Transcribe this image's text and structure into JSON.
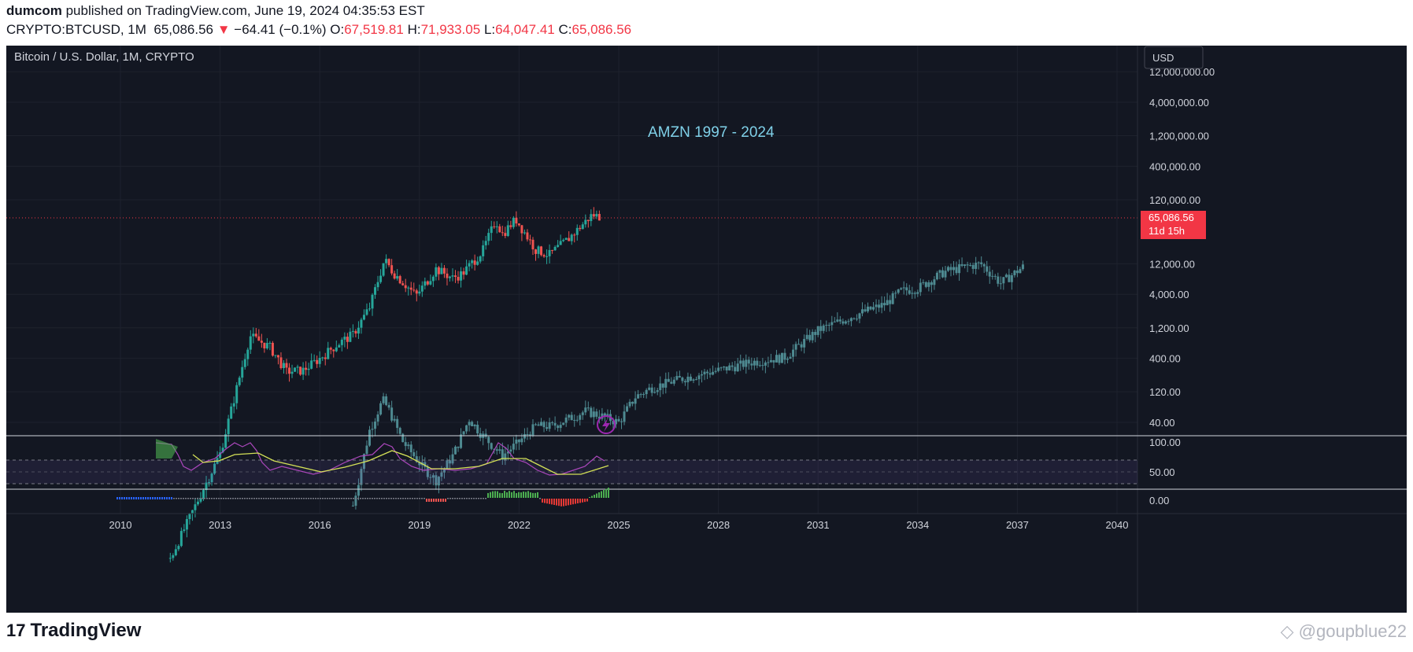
{
  "header": {
    "publisher": "dumcom",
    "published_text": "published on TradingView.com, June 19, 2024 04:35:53 EST",
    "symbol": "CRYPTO:BTCUSD, 1M",
    "last": "65,086.56",
    "change_arrow": "▼",
    "change": "−64.41 (−0.1%)",
    "o_label": "O:",
    "o": "67,519.81",
    "h_label": "H:",
    "h": "71,933.05",
    "l_label": "L:",
    "l": "64,047.41",
    "c_label": "C:",
    "c": "65,086.56"
  },
  "chart": {
    "legend": "Bitcoin / U.S. Dollar, 1M, CRYPTO",
    "currency_button": "USD",
    "annotation": "AMZN 1997 - 2024",
    "price_badge_value": "65,086.56",
    "price_badge_time": "11d 15h",
    "colors": {
      "up": "#26a69a",
      "down": "#ef5350",
      "ghost": "#4e8a91",
      "annotation": "#7fd0e8",
      "badge": "#f23645",
      "rsi": "#9c27b0",
      "rsi_ma": "#d4e157"
    }
  },
  "chart_data": {
    "type": "candlestick",
    "scale": "log",
    "y_ticks": [
      "12,000,000.00",
      "4,000,000.00",
      "1,200,000.00",
      "400,000.00",
      "120,000.00",
      "12,000.00",
      "4,000.00",
      "1,200.00",
      "400.00",
      "120.00",
      "40.00"
    ],
    "x_ticks": [
      "2010",
      "2013",
      "2016",
      "2019",
      "2022",
      "2025",
      "2028",
      "2031",
      "2034",
      "2037",
      "2040"
    ],
    "series": [
      {
        "name": "Bitcoin / U.S. Dollar, 1M, CRYPTO",
        "close": [
          [
            2011.5,
            0.3
          ],
          [
            2013.0,
            13
          ],
          [
            2013.9,
            900
          ],
          [
            2014.5,
            600
          ],
          [
            2015.0,
            250
          ],
          [
            2015.5,
            260
          ],
          [
            2016.0,
            400
          ],
          [
            2016.5,
            650
          ],
          [
            2017.0,
            950
          ],
          [
            2017.5,
            2500
          ],
          [
            2017.95,
            14000
          ],
          [
            2018.2,
            9000
          ],
          [
            2018.9,
            3800
          ],
          [
            2019.5,
            10000
          ],
          [
            2020.0,
            7200
          ],
          [
            2020.3,
            8500
          ],
          [
            2020.9,
            19000
          ],
          [
            2021.3,
            58000
          ],
          [
            2021.5,
            35000
          ],
          [
            2021.9,
            60000
          ],
          [
            2022.5,
            20000
          ],
          [
            2022.9,
            16500
          ],
          [
            2023.5,
            30000
          ],
          [
            2024.2,
            70000
          ],
          [
            2024.45,
            65086.56
          ]
        ]
      },
      {
        "name": "AMZN 1997 - 2024",
        "close": [
          [
            2017.0,
            2
          ],
          [
            2017.5,
            30
          ],
          [
            2017.9,
            90
          ],
          [
            2018.1,
            60
          ],
          [
            2018.5,
            20
          ],
          [
            2019.1,
            8
          ],
          [
            2019.5,
            5
          ],
          [
            2020.0,
            12
          ],
          [
            2020.5,
            45
          ],
          [
            2020.9,
            25
          ],
          [
            2021.5,
            12
          ],
          [
            2022.0,
            20
          ],
          [
            2022.5,
            35
          ],
          [
            2023.0,
            35
          ],
          [
            2024.0,
            60
          ],
          [
            2024.5,
            50
          ],
          [
            2025.0,
            40
          ],
          [
            2025.5,
            100
          ],
          [
            2026.0,
            140
          ],
          [
            2027.0,
            200
          ],
          [
            2028.0,
            260
          ],
          [
            2029.0,
            350
          ],
          [
            2030.0,
            420
          ],
          [
            2031.0,
            1100
          ],
          [
            2032.0,
            1800
          ],
          [
            2033.0,
            2800
          ],
          [
            2033.5,
            4500
          ],
          [
            2034.0,
            5000
          ],
          [
            2034.8,
            9000
          ],
          [
            2035.5,
            11000
          ],
          [
            2035.9,
            12000
          ],
          [
            2036.5,
            6000
          ],
          [
            2036.9,
            8500
          ],
          [
            2037.2,
            11000
          ]
        ]
      }
    ]
  },
  "rsi_ticks": [
    "100.00",
    "50.00"
  ],
  "osc_ticks": [
    "0.00"
  ],
  "footer": {
    "logo_mark": "17",
    "logo_text": "TradingView",
    "watermark": "◇ @goupblue22"
  }
}
